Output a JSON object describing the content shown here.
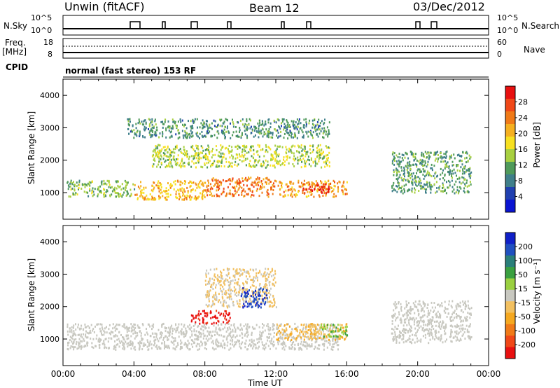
{
  "header": {
    "station": "Unwin (fitACF)",
    "beam": "Beam 12",
    "date": "03/Dec/2012"
  },
  "strips": {
    "nsky_label": "N.Sky",
    "nsky_ticks": [
      "10^5",
      "10^0"
    ],
    "nsearch_label": "N.Search",
    "nsearch_ticks": [
      "10^5",
      "10^0"
    ],
    "freq_label_1": "Freq.",
    "freq_label_2": "[MHz]",
    "freq_ticks": [
      "18",
      "8"
    ],
    "nave_label": "Nave",
    "nave_ticks": [
      "60",
      "0"
    ],
    "cpid_label": "CPID",
    "cpid_text": "normal (fast stereo) 153 RF"
  },
  "colors": {
    "power": [
      "#0a14d2",
      "#2040b0",
      "#3f7f8a",
      "#4f9a5a",
      "#a8d040",
      "#f7e020",
      "#f5b020",
      "#f07a18",
      "#f04818",
      "#e81010"
    ],
    "velocity": [
      "#e81010",
      "#f04818",
      "#f07a18",
      "#f5a820",
      "#f2c060",
      "#c8c8c0",
      "#9ad040",
      "#3aa040",
      "#2a7f7a",
      "#2050c0",
      "#1020c8"
    ],
    "ground_scatter": "#c8c8c0"
  },
  "chart_data": [
    {
      "type": "heatmap",
      "name_printed": "",
      "ylabel": "Slant Range [km]",
      "xlabel": "",
      "ylim": [
        180,
        4500
      ],
      "yticks": [
        "1000",
        "2000",
        "3000",
        "4000"
      ],
      "xlim_hours": [
        0,
        24
      ],
      "colorbar": {
        "label": "Power [dB]",
        "ticks": [
          "4",
          "8",
          "12",
          "16",
          "20",
          "24",
          "28"
        ],
        "range": [
          0,
          32
        ]
      },
      "regions": [
        {
          "t0": 3.6,
          "t1": 15.0,
          "r0": 2700,
          "r1": 3300,
          "level": 10
        },
        {
          "t0": 0.2,
          "t1": 4.0,
          "r0": 900,
          "r1": 1400,
          "level": 13
        },
        {
          "t0": 4.0,
          "t1": 8.0,
          "r0": 800,
          "r1": 1400,
          "level": 20
        },
        {
          "t0": 8.0,
          "t1": 12.0,
          "r0": 900,
          "r1": 1500,
          "level": 24
        },
        {
          "t0": 12.0,
          "t1": 16.0,
          "r0": 900,
          "r1": 1400,
          "level": 22
        },
        {
          "t0": 13.5,
          "t1": 15.0,
          "r0": 1000,
          "r1": 1300,
          "level": 29
        },
        {
          "t0": 5.0,
          "t1": 15.0,
          "r0": 1800,
          "r1": 2500,
          "level": 15
        },
        {
          "t0": 18.5,
          "t1": 23.0,
          "r0": 1000,
          "r1": 2300,
          "level": 11
        }
      ]
    },
    {
      "type": "heatmap",
      "name_printed": "",
      "ylabel": "Slant Range [km]",
      "xlabel": "Time UT",
      "ylim": [
        180,
        4500
      ],
      "yticks": [
        "1000",
        "2000",
        "3000",
        "4000"
      ],
      "xticks": [
        "00:00",
        "04:00",
        "08:00",
        "12:00",
        "16:00",
        "20:00",
        "00:00"
      ],
      "xlim_hours": [
        0,
        24
      ],
      "colorbar": {
        "label": "Velocity [m s⁻¹]",
        "ticks": [
          "200",
          "100",
          "50",
          "15",
          "-15",
          "-50",
          "-100",
          "-200"
        ],
        "range": [
          -250,
          250
        ]
      },
      "regions": [
        {
          "t0": 0.2,
          "t1": 15.5,
          "r0": 700,
          "r1": 1500,
          "vel": 0
        },
        {
          "t0": 18.5,
          "t1": 23.0,
          "r0": 900,
          "r1": 2200,
          "vel": 0
        },
        {
          "t0": 7.2,
          "t1": 9.4,
          "r0": 1500,
          "r1": 1900,
          "vel": -230
        },
        {
          "t0": 8.0,
          "t1": 12.0,
          "r0": 2000,
          "r1": 3200,
          "vel": -30
        },
        {
          "t0": 12.0,
          "t1": 16.0,
          "r0": 1000,
          "r1": 1500,
          "vel": -60
        },
        {
          "t0": 14.5,
          "t1": 16.0,
          "r0": 1100,
          "r1": 1500,
          "vel": 60
        },
        {
          "t0": 10.0,
          "t1": 11.5,
          "r0": 2000,
          "r1": 2600,
          "vel": 200
        }
      ]
    }
  ]
}
